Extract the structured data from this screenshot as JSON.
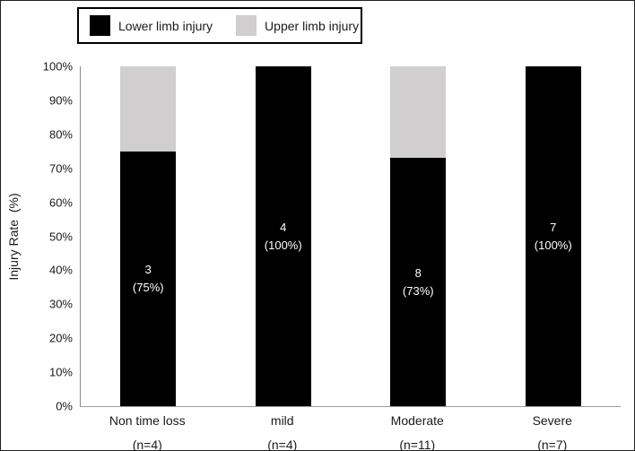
{
  "chart_data": {
    "type": "bar",
    "stacked": true,
    "title": "",
    "ylabel": "Injury Rate  (%)",
    "xlabel": "",
    "ylim": [
      0,
      100
    ],
    "yticks": [
      0,
      10,
      20,
      30,
      40,
      50,
      60,
      70,
      80,
      90,
      100
    ],
    "ytick_suffix": "%",
    "grid": false,
    "legend_position": "top-left",
    "categories": [
      "Non time loss",
      "mild",
      "Moderate",
      "Severe"
    ],
    "category_sublabels": [
      "(n=4)",
      "(n=4)",
      "(n=11)",
      "(n=7)"
    ],
    "series": [
      {
        "name": "Lower limb injury",
        "color": "#000000",
        "values": [
          75,
          100,
          73,
          100
        ]
      },
      {
        "name": "Upper limb injury",
        "color": "#d0cece",
        "values": [
          25,
          0,
          27,
          0
        ]
      }
    ],
    "bar_labels": [
      {
        "line1": "3",
        "line2": "(75%)"
      },
      {
        "line1": "4",
        "line2": "(100%)"
      },
      {
        "line1": "8",
        "line2": "(73%)"
      },
      {
        "line1": "7",
        "line2": "(100%)"
      }
    ]
  },
  "colors": {
    "lower_limb": "#000000",
    "upper_limb": "#d0cece",
    "axis_line": "#8c8c8c",
    "bar_label_text": "#ffffff",
    "background": "#ffffff"
  }
}
